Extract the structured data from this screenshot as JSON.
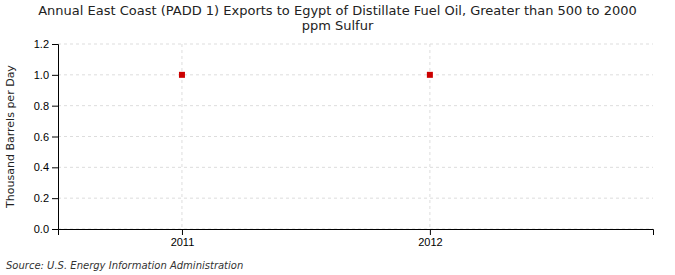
{
  "chart_data": {
    "type": "scatter",
    "title": "Annual East Coast (PADD 1) Exports to Egypt of Distillate Fuel Oil, Greater than 500 to 2000\nppm Sulfur",
    "ylabel": "Thousand Barrels per Day",
    "annotations": [
      "Source: U.S. Energy Information Administration"
    ],
    "x": [
      2011,
      2012
    ],
    "values": [
      1.0,
      1.0
    ],
    "color": "#cc0000",
    "marker": "square",
    "xlim": [
      2010.5,
      2012.9
    ],
    "ylim": [
      0.0,
      1.2
    ],
    "xticks": [
      2011,
      2012
    ],
    "yticks": [
      {
        "value": 0.0,
        "label": "0.0"
      },
      0.2,
      0.4,
      0.6,
      0.8,
      {
        "value": 1.0,
        "label": "1.0"
      },
      1.2
    ],
    "grid": true
  }
}
